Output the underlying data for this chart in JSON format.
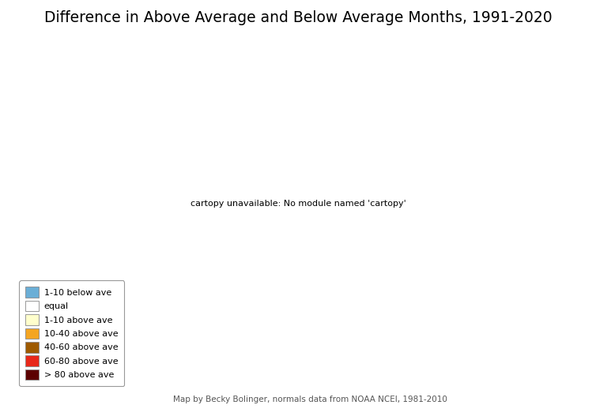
{
  "title": "Difference in Above Average and Below Average Months, 1991-2020",
  "title_fontsize": 13.5,
  "attribution": "Map by Becky Bolinger, normals data from NOAA NCEI, 1981-2010",
  "legend_entries": [
    {
      "label": "1-10 below ave",
      "color": "#6baed6"
    },
    {
      "label": "equal",
      "color": "#ffffff"
    },
    {
      "label": "1-10 above ave",
      "color": "#ffffcc"
    },
    {
      "label": "10-40 above ave",
      "color": "#f4a521"
    },
    {
      "label": "40-60 above ave",
      "color": "#9e5a00"
    },
    {
      "label": "60-80 above ave",
      "color": "#e8281a"
    },
    {
      "label": "> 80 above ave",
      "color": "#5c0000"
    }
  ],
  "background_color": "#ffffff",
  "county_edge_color": "#cccccc",
  "state_edge_color": "#555555",
  "county_edge_linewidth": 0.25,
  "state_edge_linewidth": 0.7,
  "figsize": [
    7.54,
    5.32
  ],
  "dpi": 100
}
